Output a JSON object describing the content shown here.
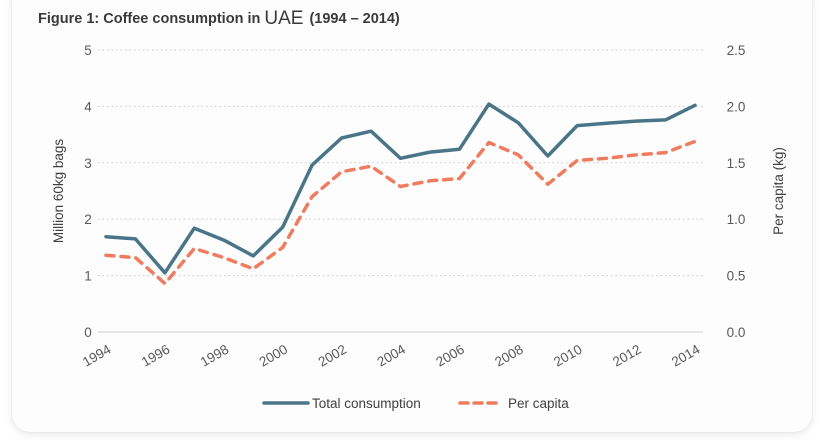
{
  "figure": {
    "title_prefix": "Figure 1: Coffee consumption in ",
    "title_country": "UAE",
    "title_suffix": "(1994 – 2014)"
  },
  "colors": {
    "total": "#4a7589",
    "per_capita": "#f07c5f",
    "grid": "#c8c8c8",
    "axis": "#d9d9d9"
  },
  "chart_data": {
    "type": "line",
    "title": "Figure 1: Coffee consumption in UAE (1994 – 2014)",
    "x": [
      1994,
      1995,
      1996,
      1997,
      1998,
      1999,
      2000,
      2001,
      2002,
      2003,
      2004,
      2005,
      2006,
      2007,
      2008,
      2009,
      2010,
      2011,
      2012,
      2013,
      2014
    ],
    "x_tick_labels": [
      "1994",
      "1996",
      "1998",
      "2000",
      "2002",
      "2004",
      "2006",
      "2008",
      "2010",
      "2012",
      "2014"
    ],
    "ylabel": "Million 60kg bags",
    "y2label": "Per capita (kg)",
    "ylim": [
      0,
      5
    ],
    "y2lim": [
      0,
      2.5
    ],
    "y_ticks": [
      "0",
      "1",
      "2",
      "3",
      "4",
      "5"
    ],
    "y2_ticks": [
      "0.0",
      "0.5",
      "1.0",
      "1.5",
      "2.0",
      "2.5"
    ],
    "grid": true,
    "legend_position": "bottom",
    "series": [
      {
        "name": "Total consumption",
        "axis": "left",
        "style": "solid",
        "values": [
          1.69,
          1.65,
          1.05,
          1.84,
          1.63,
          1.35,
          1.86,
          2.96,
          3.44,
          3.56,
          3.08,
          3.19,
          3.24,
          4.04,
          3.71,
          3.12,
          3.66,
          3.7,
          3.74,
          3.76,
          4.02
        ]
      },
      {
        "name": "Per capita",
        "axis": "right",
        "style": "dashed",
        "values": [
          0.68,
          0.66,
          0.43,
          0.74,
          0.66,
          0.56,
          0.75,
          1.2,
          1.42,
          1.47,
          1.29,
          1.34,
          1.36,
          1.68,
          1.57,
          1.31,
          1.52,
          1.54,
          1.57,
          1.59,
          1.69
        ]
      }
    ]
  }
}
